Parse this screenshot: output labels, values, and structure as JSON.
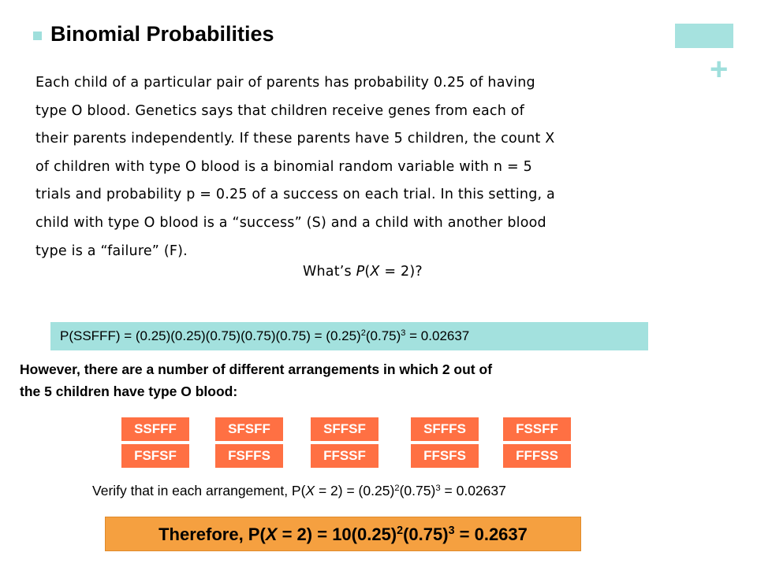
{
  "slide": {
    "title": "Binomial Probabilities",
    "paragraph_lines": [
      "Each child of a particular pair of parents has probability 0.25 of having",
      "type O blood. Genetics says that children receive genes from each of",
      "their parents independently. If these parents have 5 children, the count X",
      "of children with type O blood is a binomial random variable with n = 5",
      "trials and probability p = 0.25 of a success on each trial. In this setting, a",
      "child with type O blood is a “success” (S) and a child with another blood",
      "type is a “failure” (F)."
    ],
    "question": {
      "pre": "What’s ",
      "p": "P",
      "paren_open": "(",
      "x": "X",
      "rest": " = 2)?"
    },
    "formula1": {
      "part1": "P(SSFFF) = (0.25)(0.25)(0.75)(0.75)(0.75)  = (0.25)",
      "exp1": "2",
      "part2": "(0.75)",
      "exp2": "3",
      "part3": " = 0.02637"
    },
    "however_lines": [
      "However, there are a number of different arrangements in which 2 out of",
      "the 5 children have type O blood:"
    ],
    "arrangements": [
      [
        "SSFFF",
        "SFSFF",
        "SFFSF",
        "SFFFS",
        "FSSFF"
      ],
      [
        "FSFSF",
        "FSFFS",
        "FFSSF",
        "FFSFS",
        "FFFSS"
      ]
    ],
    "verify": {
      "part1": "Verify that in each arrangement, P(",
      "x": "X",
      "part2": " = 2) = (0.25)",
      "exp1": "2",
      "part3": "(0.75)",
      "exp2": "3",
      "part4": " = 0.02637"
    },
    "therefore": {
      "part1": "Therefore, P(",
      "x": "X",
      "part2": " = 2) = 10(0.25)",
      "exp1": "2",
      "part3": "(0.75)",
      "exp2": "3",
      "part4": " = 0.2637"
    }
  },
  "colors": {
    "accent_teal": "#a3e1de",
    "arrangement_orange": "#ff7043",
    "result_orange": "#f5a040"
  }
}
